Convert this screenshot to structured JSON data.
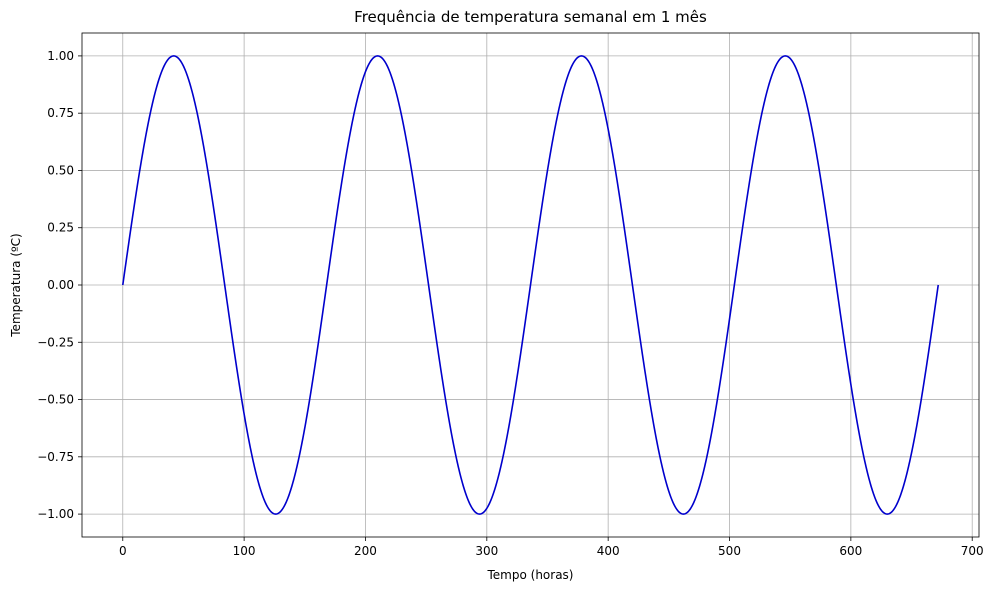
{
  "chart_data": {
    "type": "line",
    "title": "Frequência de temperatura semanal em 1 mês",
    "xlabel": "Tempo (horas)",
    "ylabel": "Temperatura (ºC)",
    "xlim": [
      -33.6,
      705.6
    ],
    "ylim": [
      -1.1,
      1.1
    ],
    "xticks": [
      0,
      100,
      200,
      300,
      400,
      500,
      600,
      700
    ],
    "xtick_labels": [
      "0",
      "100",
      "200",
      "300",
      "400",
      "500",
      "600",
      "700"
    ],
    "yticks": [
      -1.0,
      -0.75,
      -0.5,
      -0.25,
      0.0,
      0.25,
      0.5,
      0.75,
      1.0
    ],
    "ytick_labels": [
      "−1.00",
      "−0.75",
      "−0.50",
      "−0.25",
      "0.00",
      "0.25",
      "0.50",
      "0.75",
      "1.00"
    ],
    "grid": true,
    "series": [
      {
        "color": "#0000cc",
        "x": [
          0,
          21,
          42,
          63,
          84,
          105,
          126,
          147,
          168,
          189,
          210,
          231,
          252,
          273,
          294,
          315,
          336,
          357,
          378,
          399,
          420,
          441,
          462,
          483,
          504,
          525,
          546,
          567,
          588,
          609,
          630,
          651,
          672
        ],
        "y": [
          0,
          0.707,
          1,
          0.707,
          0,
          -0.707,
          -1,
          -0.707,
          0,
          0.707,
          1,
          0.707,
          0,
          -0.707,
          -1,
          -0.707,
          0,
          0.707,
          1,
          0.707,
          0,
          -0.707,
          -1,
          -0.707,
          0,
          0.707,
          1,
          0.707,
          0,
          -0.707,
          -1,
          -0.707,
          0
        ]
      }
    ]
  }
}
